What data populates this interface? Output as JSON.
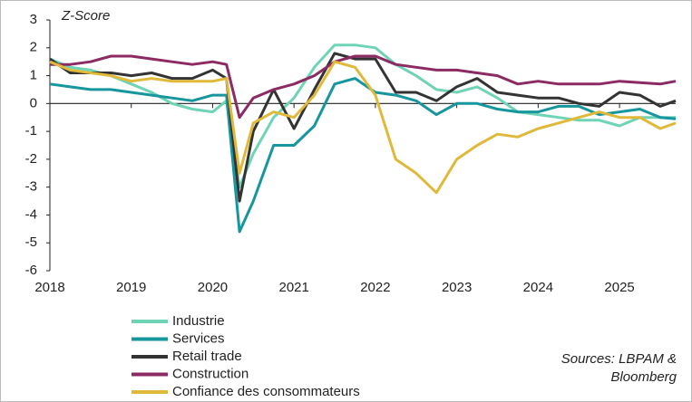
{
  "chart_data": {
    "type": "line",
    "y_label": "Z-Score",
    "source": [
      "Sources: LBPAM &",
      "Bloomberg"
    ],
    "legend": "bottom-left",
    "x": [
      2018,
      2018.25,
      2018.5,
      2018.75,
      2019,
      2019.25,
      2019.5,
      2019.75,
      2020,
      2020.17,
      2020.33,
      2020.5,
      2020.75,
      2021,
      2021.25,
      2021.5,
      2021.75,
      2022,
      2022.25,
      2022.5,
      2022.75,
      2023,
      2023.25,
      2023.5,
      2023.75,
      2024,
      2024.25,
      2024.5,
      2024.75,
      2025,
      2025.25,
      2025.5,
      2025.69
    ],
    "xlim": [
      2018,
      2025.69
    ],
    "xticks": [
      2018,
      2019,
      2020,
      2021,
      2022,
      2023,
      2024,
      2025
    ],
    "ylim": [
      -6,
      3
    ],
    "yticks": [
      -6,
      -5,
      -4,
      -3,
      -2,
      -1,
      0,
      1,
      2,
      3
    ],
    "series": [
      {
        "name": "Industrie",
        "color": "#6fd3b5",
        "values": [
          1.6,
          1.3,
          1.2,
          1.0,
          0.7,
          0.4,
          0.0,
          -0.2,
          -0.3,
          0.1,
          -3.0,
          -1.8,
          -0.5,
          0.2,
          1.3,
          2.1,
          2.1,
          2.0,
          1.4,
          1.0,
          0.5,
          0.4,
          0.6,
          0.2,
          -0.3,
          -0.4,
          -0.5,
          -0.6,
          -0.6,
          -0.8,
          -0.5,
          -0.5,
          -0.5
        ]
      },
      {
        "name": "Services",
        "color": "#17969e",
        "values": [
          0.7,
          0.6,
          0.5,
          0.5,
          0.4,
          0.3,
          0.2,
          0.1,
          0.3,
          0.3,
          -4.6,
          -3.5,
          -1.5,
          -1.5,
          -0.8,
          0.7,
          0.9,
          0.4,
          0.3,
          0.1,
          -0.4,
          0.0,
          0.0,
          -0.2,
          -0.3,
          -0.3,
          -0.1,
          -0.1,
          -0.4,
          -0.3,
          -0.2,
          -0.5,
          -0.55
        ]
      },
      {
        "name": "Retail trade",
        "color": "#333333",
        "values": [
          1.6,
          1.1,
          1.1,
          1.1,
          1.0,
          1.1,
          0.9,
          0.9,
          1.2,
          0.9,
          -3.5,
          -1.0,
          0.5,
          -0.9,
          0.5,
          1.8,
          1.6,
          1.6,
          0.4,
          0.4,
          0.1,
          0.6,
          0.9,
          0.4,
          0.3,
          0.2,
          0.2,
          0.0,
          -0.1,
          0.4,
          0.3,
          -0.1,
          0.1
        ]
      },
      {
        "name": "Construction",
        "color": "#8b2a63",
        "values": [
          1.4,
          1.4,
          1.5,
          1.7,
          1.7,
          1.6,
          1.5,
          1.4,
          1.5,
          1.4,
          -0.5,
          0.2,
          0.5,
          0.7,
          1.0,
          1.5,
          1.7,
          1.7,
          1.4,
          1.3,
          1.2,
          1.2,
          1.1,
          1.0,
          0.7,
          0.8,
          0.7,
          0.7,
          0.7,
          0.8,
          0.75,
          0.7,
          0.8
        ]
      },
      {
        "name": "Confiance des consommateurs",
        "color": "#e0b93a",
        "values": [
          1.5,
          1.2,
          1.1,
          1.0,
          0.8,
          0.9,
          0.8,
          0.8,
          0.8,
          0.9,
          -2.5,
          -0.7,
          -0.3,
          -0.5,
          0.3,
          1.5,
          1.3,
          0.3,
          -2.0,
          -2.5,
          -3.2,
          -2.0,
          -1.5,
          -1.1,
          -1.2,
          -0.9,
          -0.7,
          -0.5,
          -0.3,
          -0.5,
          -0.5,
          -0.9,
          -0.7
        ]
      }
    ]
  }
}
